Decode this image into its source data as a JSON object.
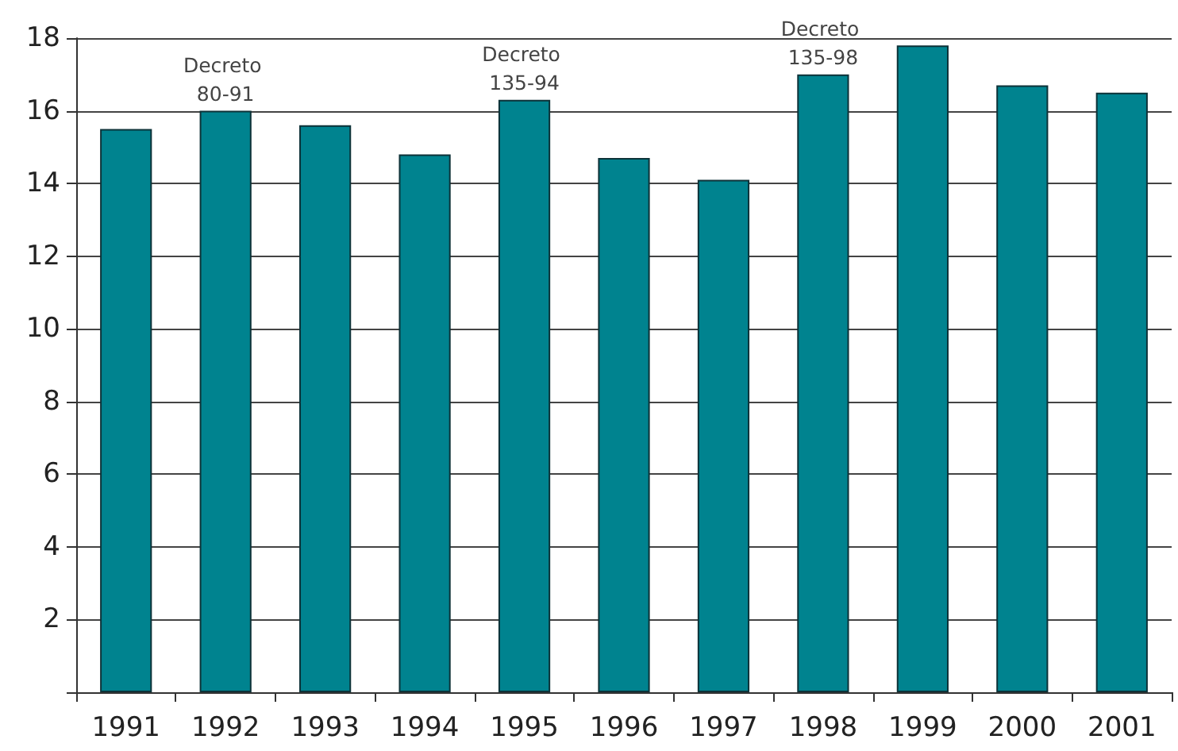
{
  "chart_data": {
    "type": "bar",
    "categories": [
      "1991",
      "1992",
      "1993",
      "1994",
      "1995",
      "1996",
      "1997",
      "1998",
      "1999",
      "2000",
      "2001"
    ],
    "values": [
      15.5,
      16.0,
      15.6,
      14.8,
      16.3,
      14.7,
      14.1,
      17.0,
      17.8,
      16.7,
      16.5
    ],
    "color": "#00838f",
    "ylim": [
      0,
      18
    ],
    "yticks": [
      {
        "value": 0,
        "label": null
      },
      2,
      4,
      6,
      8,
      10,
      12,
      14,
      16,
      18
    ],
    "grid": "y",
    "annotations": [
      {
        "text": "Decreto 80-91",
        "x": "1992",
        "y": 16.0
      },
      {
        "text": "Decreto 135-94",
        "x": "1995",
        "y": 16.3
      },
      {
        "text": "Decreto 135-98",
        "x": "1998",
        "y": 17.0
      }
    ]
  }
}
